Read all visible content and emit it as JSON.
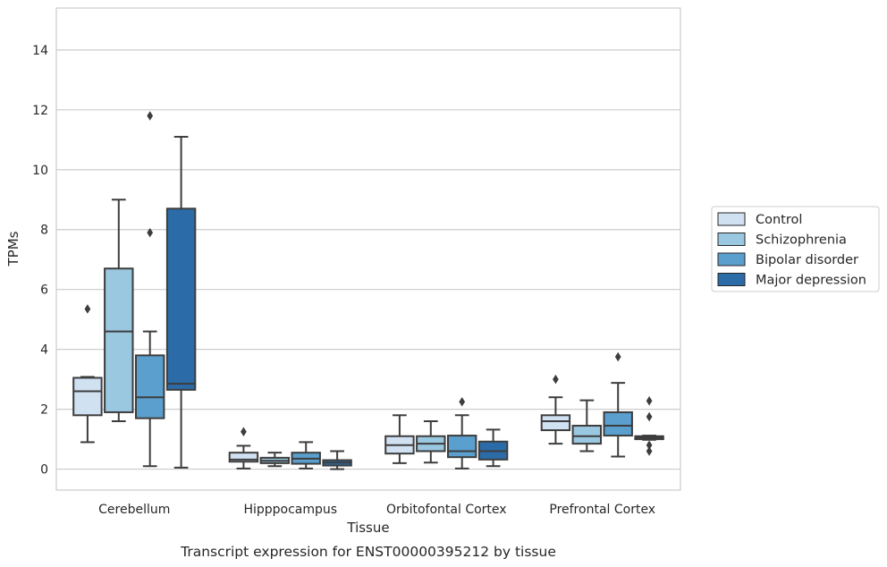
{
  "chart_data": {
    "type": "box",
    "xlabel": "Tissue",
    "ylabel": "TPMs",
    "caption": "Transcript expression for ENST00000395212 by tissue",
    "ylim": [
      -0.7,
      15.4
    ],
    "yticks": [
      0,
      2,
      4,
      6,
      8,
      10,
      12,
      14
    ],
    "grid": "horizontal",
    "legend_position": "right",
    "categories": [
      "Cerebellum",
      "Hipppocampus",
      "Orbitofontal Cortex",
      "Prefrontal Cortex"
    ],
    "series": [
      {
        "name": "Control",
        "color": "#d0e1f2",
        "boxes": [
          {
            "whislo": 0.9,
            "q1": 1.8,
            "med": 2.6,
            "q3": 3.05,
            "whishi": 3.08,
            "fliers": [
              5.35
            ]
          },
          {
            "whislo": 0.02,
            "q1": 0.25,
            "med": 0.32,
            "q3": 0.55,
            "whishi": 0.78,
            "fliers": [
              1.25
            ]
          },
          {
            "whislo": 0.2,
            "q1": 0.52,
            "med": 0.8,
            "q3": 1.1,
            "whishi": 1.8,
            "fliers": []
          },
          {
            "whislo": 0.85,
            "q1": 1.3,
            "med": 1.6,
            "q3": 1.8,
            "whishi": 2.4,
            "fliers": [
              3.0
            ]
          }
        ]
      },
      {
        "name": "Schizophrenia",
        "color": "#9ac8e0",
        "boxes": [
          {
            "whislo": 1.6,
            "q1": 1.9,
            "med": 4.6,
            "q3": 6.7,
            "whishi": 9.0,
            "fliers": []
          },
          {
            "whislo": 0.1,
            "q1": 0.2,
            "med": 0.28,
            "q3": 0.38,
            "whishi": 0.55,
            "fliers": []
          },
          {
            "whislo": 0.22,
            "q1": 0.6,
            "med": 0.85,
            "q3": 1.1,
            "whishi": 1.6,
            "fliers": []
          },
          {
            "whislo": 0.6,
            "q1": 0.85,
            "med": 1.1,
            "q3": 1.45,
            "whishi": 2.3,
            "fliers": []
          }
        ]
      },
      {
        "name": "Bipolar disorder",
        "color": "#5a9fcd",
        "boxes": [
          {
            "whislo": 0.1,
            "q1": 1.7,
            "med": 2.4,
            "q3": 3.8,
            "whishi": 4.6,
            "fliers": [
              7.9,
              11.8
            ]
          },
          {
            "whislo": 0.02,
            "q1": 0.18,
            "med": 0.35,
            "q3": 0.55,
            "whishi": 0.9,
            "fliers": []
          },
          {
            "whislo": 0.02,
            "q1": 0.4,
            "med": 0.6,
            "q3": 1.12,
            "whishi": 1.8,
            "fliers": [
              2.25
            ]
          },
          {
            "whislo": 0.42,
            "q1": 1.12,
            "med": 1.45,
            "q3": 1.9,
            "whishi": 2.88,
            "fliers": [
              3.75
            ]
          }
        ]
      },
      {
        "name": "Major depression",
        "color": "#2b6ba8",
        "boxes": [
          {
            "whislo": 0.05,
            "q1": 2.65,
            "med": 2.85,
            "q3": 8.7,
            "whishi": 11.1,
            "fliers": []
          },
          {
            "whislo": 0.0,
            "q1": 0.12,
            "med": 0.22,
            "q3": 0.3,
            "whishi": 0.6,
            "fliers": []
          },
          {
            "whislo": 0.1,
            "q1": 0.32,
            "med": 0.6,
            "q3": 0.92,
            "whishi": 1.32,
            "fliers": []
          },
          {
            "whislo": 0.98,
            "q1": 1.0,
            "med": 1.05,
            "q3": 1.1,
            "whishi": 1.12,
            "fliers": [
              0.6,
              0.8,
              1.75,
              2.28
            ]
          }
        ]
      }
    ]
  }
}
